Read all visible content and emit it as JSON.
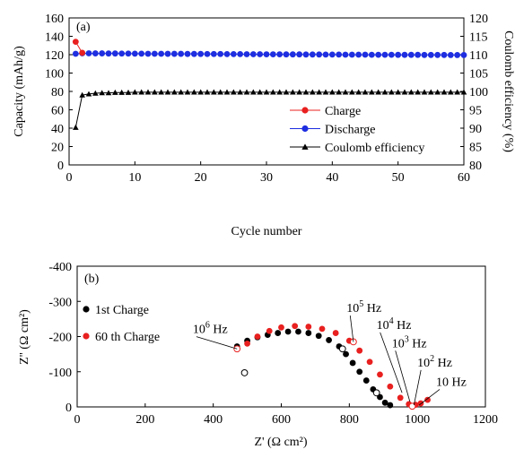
{
  "chart_data": [
    {
      "type": "line",
      "panel_label": "(a)",
      "xlabel": "Cycle number",
      "ylabel": "Capacity (mAh/g)",
      "y2label": "Coulomb efficiency (%)",
      "xlim": [
        0,
        60
      ],
      "ylim": [
        0,
        160
      ],
      "y2lim": [
        80,
        120
      ],
      "xticks": [
        0,
        10,
        20,
        30,
        40,
        50,
        60
      ],
      "yticks": [
        0,
        20,
        40,
        60,
        80,
        100,
        120,
        140,
        160
      ],
      "y2ticks": [
        80,
        85,
        90,
        95,
        100,
        105,
        110,
        115,
        120
      ],
      "legend_position": "lower-right",
      "series": [
        {
          "name": "Charge",
          "axis": "left",
          "color": "#e8201f",
          "marker": "circle",
          "x": [
            1,
            2
          ],
          "y": [
            134,
            122
          ]
        },
        {
          "name": "Discharge",
          "axis": "left",
          "color": "#1e2ee0",
          "marker": "circle",
          "x": [
            1,
            2,
            3,
            4,
            5,
            6,
            7,
            8,
            9,
            10,
            11,
            12,
            13,
            14,
            15,
            16,
            17,
            18,
            19,
            20,
            21,
            22,
            23,
            24,
            25,
            26,
            27,
            28,
            29,
            30,
            31,
            32,
            33,
            34,
            35,
            36,
            37,
            38,
            39,
            40,
            41,
            42,
            43,
            44,
            45,
            46,
            47,
            48,
            49,
            50,
            51,
            52,
            53,
            54,
            55,
            56,
            57,
            58,
            59,
            60
          ],
          "y": [
            121,
            121.5,
            121.5,
            121.4,
            121.4,
            121.3,
            121.3,
            121.2,
            121.2,
            121.1,
            121.1,
            121.0,
            121.0,
            121.0,
            120.9,
            120.9,
            120.9,
            120.8,
            120.8,
            120.8,
            120.7,
            120.7,
            120.7,
            120.6,
            120.6,
            120.6,
            120.5,
            120.5,
            120.5,
            120.4,
            120.4,
            120.4,
            120.3,
            120.3,
            120.3,
            120.2,
            120.2,
            120.2,
            120.1,
            120.1,
            120.1,
            120.0,
            120.0,
            120.0,
            120.0,
            119.9,
            119.9,
            119.9,
            119.9,
            119.8,
            119.8,
            119.8,
            119.8,
            119.7,
            119.7,
            119.7,
            119.7,
            119.6,
            119.6,
            119.6
          ]
        },
        {
          "name": "Coulomb efficiency",
          "axis": "right",
          "color": "#000000",
          "marker": "triangle",
          "x": [
            1,
            2,
            3,
            4,
            5,
            6,
            7,
            8,
            9,
            10,
            11,
            12,
            13,
            14,
            15,
            16,
            17,
            18,
            19,
            20,
            21,
            22,
            23,
            24,
            25,
            26,
            27,
            28,
            29,
            30,
            31,
            32,
            33,
            34,
            35,
            36,
            37,
            38,
            39,
            40,
            41,
            42,
            43,
            44,
            45,
            46,
            47,
            48,
            49,
            50,
            51,
            52,
            53,
            54,
            55,
            56,
            57,
            58,
            59,
            60
          ],
          "y": [
            90.2,
            99.0,
            99.3,
            99.5,
            99.6,
            99.6,
            99.7,
            99.7,
            99.7,
            99.8,
            99.8,
            99.8,
            99.8,
            99.8,
            99.8,
            99.8,
            99.8,
            99.8,
            99.8,
            99.8,
            99.8,
            99.8,
            99.8,
            99.8,
            99.8,
            99.8,
            99.8,
            99.8,
            99.8,
            99.8,
            99.8,
            99.8,
            99.8,
            99.8,
            99.8,
            99.8,
            99.8,
            99.8,
            99.8,
            99.8,
            99.8,
            99.8,
            99.8,
            99.8,
            99.8,
            99.8,
            99.8,
            99.8,
            99.8,
            99.8,
            99.8,
            99.8,
            99.8,
            99.8,
            99.8,
            99.8,
            99.8,
            99.8,
            99.8,
            99.8
          ]
        }
      ]
    },
    {
      "type": "scatter",
      "panel_label": "(b)",
      "xlabel": "Z' (Ω cm²)",
      "ylabel": "Z'' (Ω cm²)",
      "xlim": [
        0,
        1200
      ],
      "ylim": [
        -400,
        0
      ],
      "y_inverted": true,
      "xticks": [
        0,
        200,
        400,
        600,
        800,
        1000,
        1200
      ],
      "yticks": [
        -400,
        -300,
        -200,
        -100,
        0
      ],
      "legend_position": "upper-left",
      "series": [
        {
          "name": "1st Charge",
          "color": "#000000",
          "marker": "circle",
          "x": [
            470,
            500,
            530,
            560,
            590,
            620,
            650,
            680,
            710,
            740,
            770,
            790,
            810,
            830,
            850,
            870,
            890,
            905,
            920
          ],
          "y": [
            -172,
            -188,
            -198,
            -205,
            -210,
            -214,
            -214,
            -210,
            -202,
            -190,
            -172,
            -150,
            -125,
            -100,
            -75,
            -50,
            -28,
            -12,
            -5
          ]
        },
        {
          "name": "60 th Charge",
          "color": "#e8201f",
          "marker": "circle",
          "x": [
            470,
            500,
            530,
            565,
            600,
            640,
            680,
            720,
            760,
            800,
            830,
            860,
            890,
            920,
            950,
            975,
            995,
            1010,
            1030
          ],
          "y": [
            -165,
            -180,
            -200,
            -216,
            -226,
            -230,
            -228,
            -222,
            -210,
            -188,
            -160,
            -128,
            -92,
            -58,
            -26,
            -8,
            -6,
            -10,
            -20
          ]
        }
      ],
      "open_markers": [
        {
          "color": "#000000",
          "x": 492,
          "y": -97
        },
        {
          "color": "#000000",
          "x": 780,
          "y": -165
        },
        {
          "color": "#000000",
          "x": 880,
          "y": -40
        },
        {
          "color": "#e8201f",
          "x": 470,
          "y": -165
        },
        {
          "color": "#e8201f",
          "x": 812,
          "y": -185
        },
        {
          "color": "#e8201f",
          "x": 985,
          "y": -2
        }
      ],
      "annotations": [
        {
          "base": "10",
          "exp": "6",
          "unit": " Hz",
          "x": 340,
          "y": -210,
          "px": 470,
          "py": -165
        },
        {
          "base": "10",
          "exp": "5",
          "unit": " Hz",
          "x": 792,
          "y": -270,
          "px": 812,
          "py": -185
        },
        {
          "base": "10",
          "exp": "4",
          "unit": " Hz",
          "x": 880,
          "y": -222,
          "px": 955,
          "py": -40
        },
        {
          "base": "10",
          "exp": "3",
          "unit": " Hz",
          "x": 925,
          "y": -170,
          "px": 978,
          "py": -15
        },
        {
          "base": "10",
          "exp": "2",
          "unit": " Hz",
          "x": 1000,
          "y": -115,
          "px": 990,
          "py": -5
        },
        {
          "base": "10",
          "exp": "",
          "unit": " Hz",
          "x": 1055,
          "y": -60,
          "px": 1005,
          "py": -5
        }
      ]
    }
  ]
}
